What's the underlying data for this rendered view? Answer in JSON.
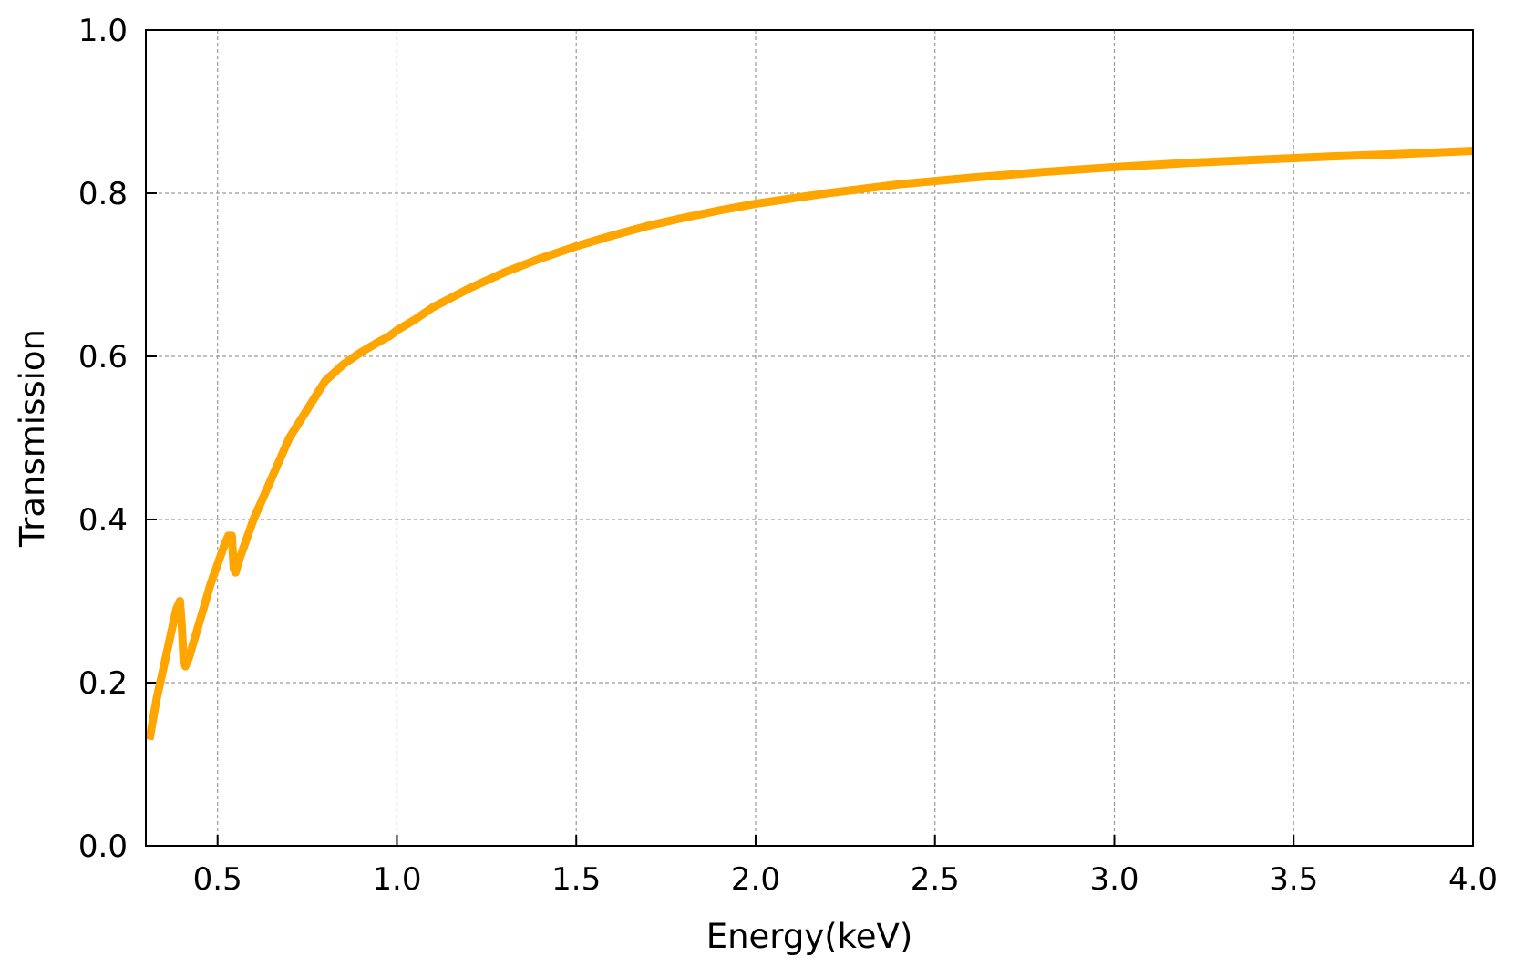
{
  "chart_data": {
    "type": "line",
    "title": "",
    "xlabel": "Energy(keV)",
    "ylabel": "Transmission",
    "xlim": [
      0.3,
      4.0
    ],
    "ylim": [
      0.0,
      1.0
    ],
    "xticks": [
      "0.5",
      "1.0",
      "1.5",
      "2.0",
      "2.5",
      "3.0",
      "3.5",
      "4.0"
    ],
    "xtick_values": [
      0.5,
      1.0,
      1.5,
      2.0,
      2.5,
      3.0,
      3.5,
      4.0
    ],
    "yticks": [
      "0.0",
      "0.2",
      "0.4",
      "0.6",
      "0.8",
      "1.0"
    ],
    "ytick_values": [
      0.0,
      0.2,
      0.4,
      0.6,
      0.8,
      1.0
    ],
    "grid": true,
    "legend": "none",
    "series": [
      {
        "color": "#FFA500",
        "x": [
          0.31,
          0.33,
          0.35,
          0.37,
          0.385,
          0.395,
          0.4,
          0.405,
          0.41,
          0.42,
          0.44,
          0.46,
          0.48,
          0.5,
          0.52,
          0.53,
          0.54,
          0.545,
          0.55,
          0.56,
          0.58,
          0.6,
          0.63,
          0.66,
          0.7,
          0.75,
          0.8,
          0.85,
          0.9,
          0.95,
          0.98,
          1.0,
          1.05,
          1.1,
          1.2,
          1.3,
          1.4,
          1.5,
          1.6,
          1.7,
          1.8,
          1.9,
          2.0,
          2.2,
          2.4,
          2.6,
          2.8,
          3.0,
          3.2,
          3.4,
          3.6,
          3.8,
          4.0
        ],
        "y": [
          0.13,
          0.18,
          0.22,
          0.26,
          0.29,
          0.3,
          0.27,
          0.23,
          0.22,
          0.23,
          0.26,
          0.29,
          0.32,
          0.345,
          0.37,
          0.38,
          0.38,
          0.34,
          0.335,
          0.35,
          0.375,
          0.4,
          0.43,
          0.46,
          0.5,
          0.535,
          0.57,
          0.59,
          0.605,
          0.618,
          0.625,
          0.632,
          0.645,
          0.66,
          0.683,
          0.703,
          0.72,
          0.735,
          0.748,
          0.76,
          0.77,
          0.779,
          0.787,
          0.8,
          0.811,
          0.819,
          0.826,
          0.832,
          0.837,
          0.841,
          0.845,
          0.848,
          0.852
        ]
      }
    ]
  }
}
